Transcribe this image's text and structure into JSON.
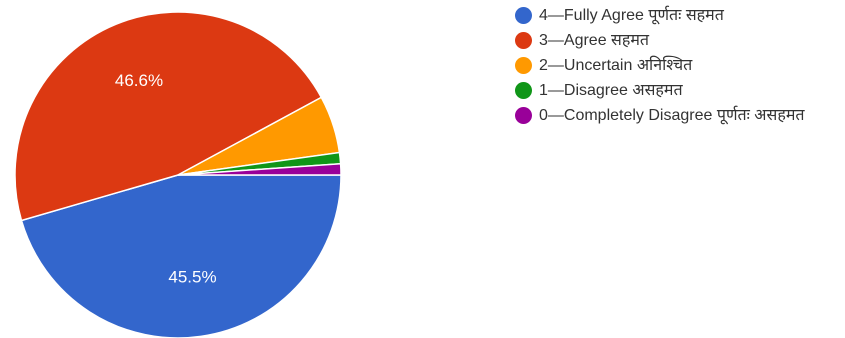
{
  "chart_data": {
    "type": "pie",
    "categories": [
      "4—Fully Agree पूर्णतः सहमत",
      "3—Agree सहमत",
      "2—Uncertain अनिश्चित",
      "1—Disagree असहमत",
      "0—Completely Disagree पूर्णतः असहमत"
    ],
    "values": [
      45.5,
      46.6,
      5.7,
      1.1,
      1.1
    ],
    "data_labels": [
      "45.5%",
      "46.6%",
      "",
      "",
      ""
    ],
    "colors": [
      "#3366cc",
      "#dc3912",
      "#ff9900",
      "#109618",
      "#990099"
    ],
    "legend_position": "right"
  }
}
